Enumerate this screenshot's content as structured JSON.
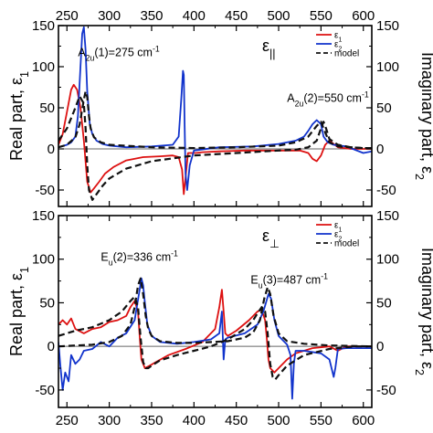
{
  "chart_data": [
    {
      "type": "line",
      "panel": "top",
      "legend_title": "ε||",
      "legend_position": "top-right",
      "xlim": [
        240,
        610
      ],
      "xticks": [
        250,
        300,
        350,
        400,
        450,
        500,
        550,
        600
      ],
      "ylim_left": [
        -70,
        150
      ],
      "yticks_left": [
        -50,
        0,
        50,
        100,
        150
      ],
      "ylim_right": [
        -70,
        150
      ],
      "yticks_right": [
        -50,
        0,
        50,
        100,
        150
      ],
      "ylabel_left": "Real part, ε1",
      "ylabel_right": "Imaginary part, ε2",
      "grid": false,
      "annotations": [
        {
          "text": "A2u(1)=275 cm-1",
          "x": 263,
          "y": 113
        },
        {
          "text": "A2u(2)=550 cm-1",
          "x": 510,
          "y": 57
        }
      ],
      "series": [
        {
          "name": "ε1",
          "color": "#dd1111",
          "style": "solid",
          "x": [
            240,
            245,
            250,
            255,
            258,
            262,
            266,
            270,
            274,
            278,
            282,
            288,
            295,
            305,
            320,
            340,
            360,
            375,
            382,
            386,
            388,
            390,
            393,
            397,
            402,
            410,
            430,
            460,
            490,
            510,
            525,
            535,
            540,
            545,
            550,
            555,
            560,
            570,
            585,
            600,
            610
          ],
          "y": [
            5,
            18,
            45,
            72,
            78,
            72,
            50,
            10,
            -40,
            -53,
            -48,
            -40,
            -30,
            -22,
            -14,
            -10,
            -9,
            -8,
            -10,
            -25,
            -55,
            -35,
            -5,
            -5,
            -5,
            -4,
            -3,
            -2,
            -2,
            -2,
            -2,
            -5,
            -12,
            -15,
            -8,
            5,
            10,
            2,
            0,
            0,
            0
          ]
        },
        {
          "name": "ε2",
          "color": "#1133cc",
          "style": "solid",
          "x": [
            240,
            250,
            255,
            260,
            263,
            266,
            268,
            270,
            272,
            274,
            277,
            280,
            285,
            292,
            300,
            320,
            350,
            375,
            382,
            385,
            387,
            388,
            389,
            390,
            392,
            395,
            400,
            430,
            470,
            500,
            520,
            530,
            535,
            540,
            545,
            550,
            553,
            558,
            565,
            580,
            600,
            610
          ],
          "y": [
            2,
            5,
            8,
            15,
            40,
            100,
            140,
            148,
            120,
            70,
            30,
            18,
            10,
            6,
            4,
            2,
            3,
            5,
            15,
            60,
            95,
            90,
            30,
            -30,
            -50,
            -20,
            -2,
            2,
            3,
            6,
            10,
            15,
            22,
            30,
            35,
            30,
            15,
            8,
            5,
            3,
            -5,
            -3
          ]
        },
        {
          "name": "model",
          "color": "#111111",
          "style": "dashed",
          "x": [
            240,
            250,
            258,
            265,
            270,
            272,
            274,
            276,
            280,
            285,
            292,
            300,
            320,
            350,
            400,
            450,
            500,
            520,
            535,
            545,
            550,
            553,
            556,
            560,
            570,
            585,
            600,
            610
          ],
          "y": [
            10,
            25,
            45,
            64,
            55,
            25,
            -20,
            -50,
            -62,
            -55,
            -45,
            -36,
            -24,
            -15,
            -8,
            -5,
            -2,
            -1,
            2,
            10,
            25,
            33,
            25,
            12,
            5,
            2,
            1,
            1
          ]
        },
        {
          "name": "model",
          "color": "#111111",
          "style": "dashed",
          "x": [
            240,
            250,
            260,
            265,
            270,
            272,
            274,
            276,
            278,
            282,
            290,
            300,
            350,
            400,
            450,
            500,
            520,
            535,
            545,
            550,
            555,
            560,
            570,
            600,
            610
          ],
          "y": [
            2,
            5,
            14,
            30,
            60,
            70,
            63,
            40,
            25,
            14,
            8,
            5,
            2,
            1,
            2,
            4,
            8,
            15,
            28,
            33,
            20,
            8,
            3,
            1,
            1
          ]
        }
      ]
    },
    {
      "type": "line",
      "panel": "bottom",
      "legend_title": "ε⊥",
      "legend_position": "top-right",
      "xlim": [
        240,
        610
      ],
      "xticks": [
        250,
        300,
        350,
        400,
        450,
        500,
        550,
        600
      ],
      "ylim_left": [
        -70,
        150
      ],
      "yticks_left": [
        -50,
        0,
        50,
        100,
        150
      ],
      "ylim_right": [
        -70,
        150
      ],
      "yticks_right": [
        -50,
        0,
        50,
        100,
        150
      ],
      "ylabel_left": "Real part, ε1",
      "ylabel_right": "Imaginary part, ε2",
      "grid": false,
      "annotations": [
        {
          "text": "Eu(2)=336 cm-1",
          "x": 290,
          "y": 98
        },
        {
          "text": "Eu(3)=487 cm-1",
          "x": 467,
          "y": 72
        }
      ],
      "series": [
        {
          "name": "ε1",
          "color": "#dd1111",
          "style": "solid",
          "x": [
            240,
            245,
            250,
            255,
            260,
            270,
            280,
            290,
            300,
            310,
            320,
            325,
            330,
            334,
            336,
            338,
            342,
            348,
            355,
            370,
            390,
            410,
            425,
            430,
            433,
            435,
            437,
            440,
            450,
            465,
            475,
            480,
            484,
            486,
            488,
            490,
            495,
            500,
            510,
            520,
            540,
            560,
            570,
            580,
            595,
            610
          ],
          "y": [
            25,
            30,
            25,
            32,
            20,
            15,
            20,
            22,
            28,
            30,
            35,
            45,
            52,
            40,
            10,
            -15,
            -25,
            -22,
            -18,
            -10,
            -3,
            5,
            20,
            45,
            65,
            40,
            15,
            12,
            18,
            30,
            40,
            42,
            30,
            10,
            -15,
            -25,
            -30,
            -25,
            -15,
            -8,
            -2,
            0,
            -5,
            0,
            0,
            0
          ]
        },
        {
          "name": "ε2",
          "color": "#1133cc",
          "style": "solid",
          "x": [
            240,
            242,
            245,
            248,
            252,
            255,
            260,
            265,
            270,
            280,
            290,
            300,
            310,
            320,
            330,
            335,
            338,
            340,
            342,
            345,
            350,
            360,
            380,
            400,
            420,
            430,
            433,
            435,
            437,
            440,
            460,
            475,
            482,
            485,
            488,
            491,
            495,
            500,
            510,
            514,
            516,
            518,
            520,
            530,
            550,
            560,
            565,
            567,
            570,
            580,
            600,
            610
          ],
          "y": [
            5,
            -20,
            -50,
            -30,
            -40,
            -10,
            -20,
            -15,
            -5,
            -3,
            5,
            0,
            10,
            15,
            30,
            60,
            78,
            70,
            50,
            25,
            12,
            5,
            3,
            5,
            8,
            15,
            40,
            -15,
            8,
            10,
            15,
            25,
            40,
            50,
            60,
            55,
            30,
            12,
            2,
            -10,
            -60,
            -20,
            -5,
            -5,
            -8,
            -15,
            -35,
            -25,
            -3,
            -2,
            -2,
            -2
          ]
        },
        {
          "name": "model",
          "color": "#111111",
          "style": "dashed",
          "x": [
            240,
            260,
            280,
            300,
            315,
            325,
            330,
            334,
            337,
            340,
            343,
            346,
            350,
            360,
            380,
            400,
            420,
            440,
            460,
            470,
            475,
            480,
            484,
            487,
            490,
            493,
            496,
            500,
            510,
            530,
            560,
            590,
            610
          ],
          "y": [
            12,
            18,
            22,
            30,
            40,
            52,
            57,
            45,
            10,
            -18,
            -25,
            -25,
            -22,
            -16,
            -10,
            -5,
            0,
            8,
            20,
            30,
            38,
            45,
            40,
            15,
            -20,
            -35,
            -38,
            -33,
            -22,
            -10,
            -3,
            0,
            0
          ]
        },
        {
          "name": "model",
          "color": "#111111",
          "style": "dashed",
          "x": [
            240,
            280,
            300,
            315,
            325,
            330,
            334,
            337,
            340,
            343,
            346,
            350,
            360,
            380,
            400,
            440,
            460,
            470,
            478,
            483,
            487,
            490,
            494,
            500,
            510,
            530,
            560,
            610
          ],
          "y": [
            0,
            2,
            5,
            12,
            25,
            45,
            70,
            78,
            60,
            35,
            20,
            12,
            6,
            4,
            4,
            6,
            10,
            16,
            30,
            55,
            68,
            60,
            35,
            15,
            6,
            3,
            1,
            0
          ]
        }
      ]
    }
  ],
  "legend": {
    "e1": "ε1",
    "e2": "ε2",
    "model": "model"
  }
}
